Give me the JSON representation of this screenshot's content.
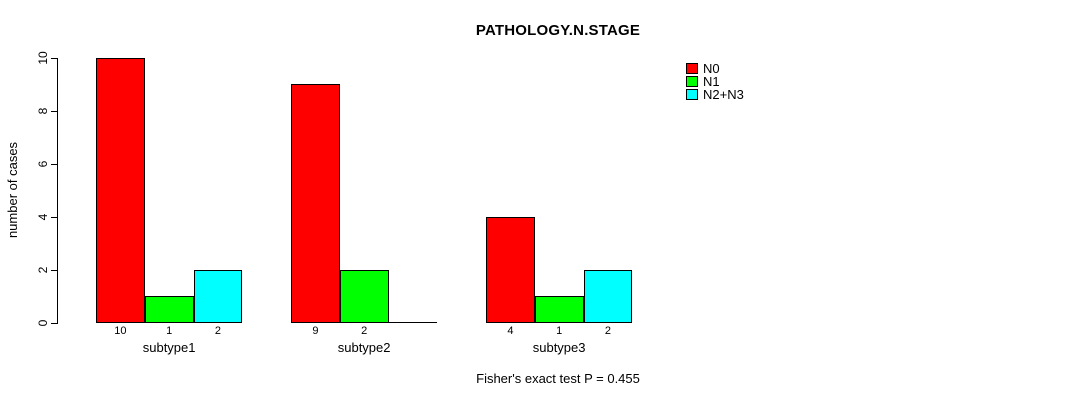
{
  "chart_data": {
    "type": "bar",
    "title": "PATHOLOGY.N.STAGE",
    "ylabel": "number of cases",
    "xlabel": "",
    "annotation": "Fisher's exact test P = 0.455",
    "categories": [
      "subtype1",
      "subtype2",
      "subtype3"
    ],
    "series": [
      {
        "name": "N0",
        "color": "#ff0000",
        "values": [
          10,
          9,
          4
        ]
      },
      {
        "name": "N1",
        "color": "#00ff00",
        "values": [
          1,
          2,
          1
        ]
      },
      {
        "name": "N2+N3",
        "color": "#00ffff",
        "values": [
          2,
          0,
          2
        ]
      }
    ],
    "bar_labels": [
      [
        "10",
        "1",
        "2"
      ],
      [
        "9",
        "2",
        ""
      ],
      [
        "4",
        "1",
        "2"
      ]
    ],
    "ylim": [
      0,
      10
    ],
    "yticks": [
      0,
      2,
      4,
      6,
      8,
      10
    ],
    "grid": false,
    "legend_position": "right",
    "legend_entries": [
      "N0",
      "N1",
      "N2+N3"
    ]
  },
  "colors": {
    "background": "#ffffff",
    "axis": "#000000",
    "N0": "#ff0000",
    "N1": "#00ff00",
    "N2_N3": "#00ffff"
  }
}
